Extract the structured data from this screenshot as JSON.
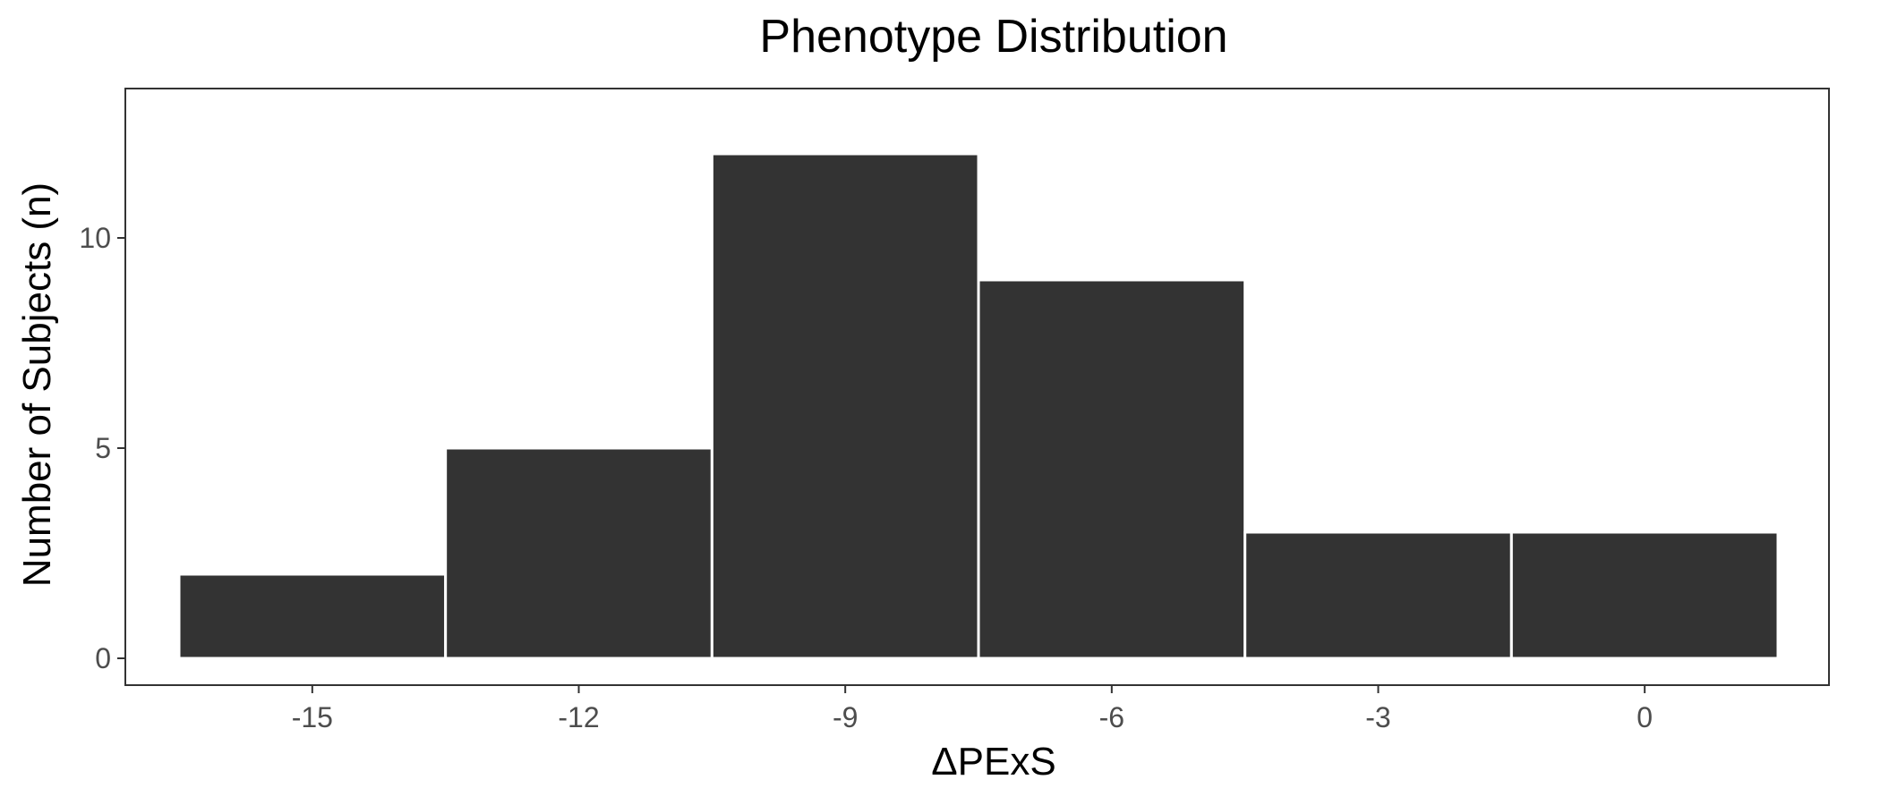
{
  "chart_data": {
    "type": "bar",
    "title": "Phenotype Distribution",
    "xlabel": "ΔPExS",
    "ylabel": "Number of Subjects (n)",
    "x": [
      -15,
      -12,
      -9,
      -6,
      -3,
      0
    ],
    "values": [
      2,
      5,
      12,
      9,
      3,
      3
    ],
    "bin_width": 3,
    "xlim": [
      -16.5,
      1.5
    ],
    "ylim": [
      0,
      12
    ],
    "x_ticks": [
      -15,
      -12,
      -9,
      -6,
      -3,
      0
    ],
    "x_tick_labels": [
      "-15",
      "-12",
      "-9",
      "-6",
      "-3",
      "0"
    ],
    "y_ticks": [
      0,
      5,
      10
    ],
    "y_tick_labels": [
      "0",
      "5",
      "10"
    ],
    "grid": false,
    "legend": "none"
  },
  "colors": {
    "bar_fill": "#333333",
    "bar_outline": "#ffffff",
    "panel_border": "#333333",
    "tick_text": "#4d4d4d",
    "text": "#000000",
    "background": "#ffffff"
  }
}
